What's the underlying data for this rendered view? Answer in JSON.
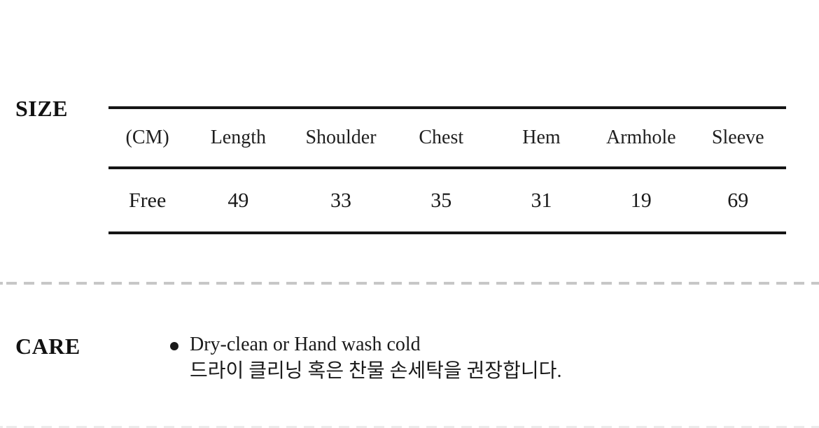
{
  "size_section": {
    "label": "SIZE",
    "table": {
      "headers": [
        "(CM)",
        "Length",
        "Shoulder",
        "Chest",
        "Hem",
        "Armhole",
        "Sleeve"
      ],
      "row": [
        "Free",
        "49",
        "33",
        "35",
        "31",
        "19",
        "69"
      ]
    }
  },
  "care_section": {
    "label": "CARE",
    "line_en": "Dry-clean or Hand wash cold",
    "line_ko": "드라이 클리닝 혹은 찬물 손세탁을 권장합니다."
  },
  "colors": {
    "text": "#1a1a1a",
    "table_line": "#151515",
    "divider_dash": "#c7c7c7",
    "background": "#ffffff"
  }
}
